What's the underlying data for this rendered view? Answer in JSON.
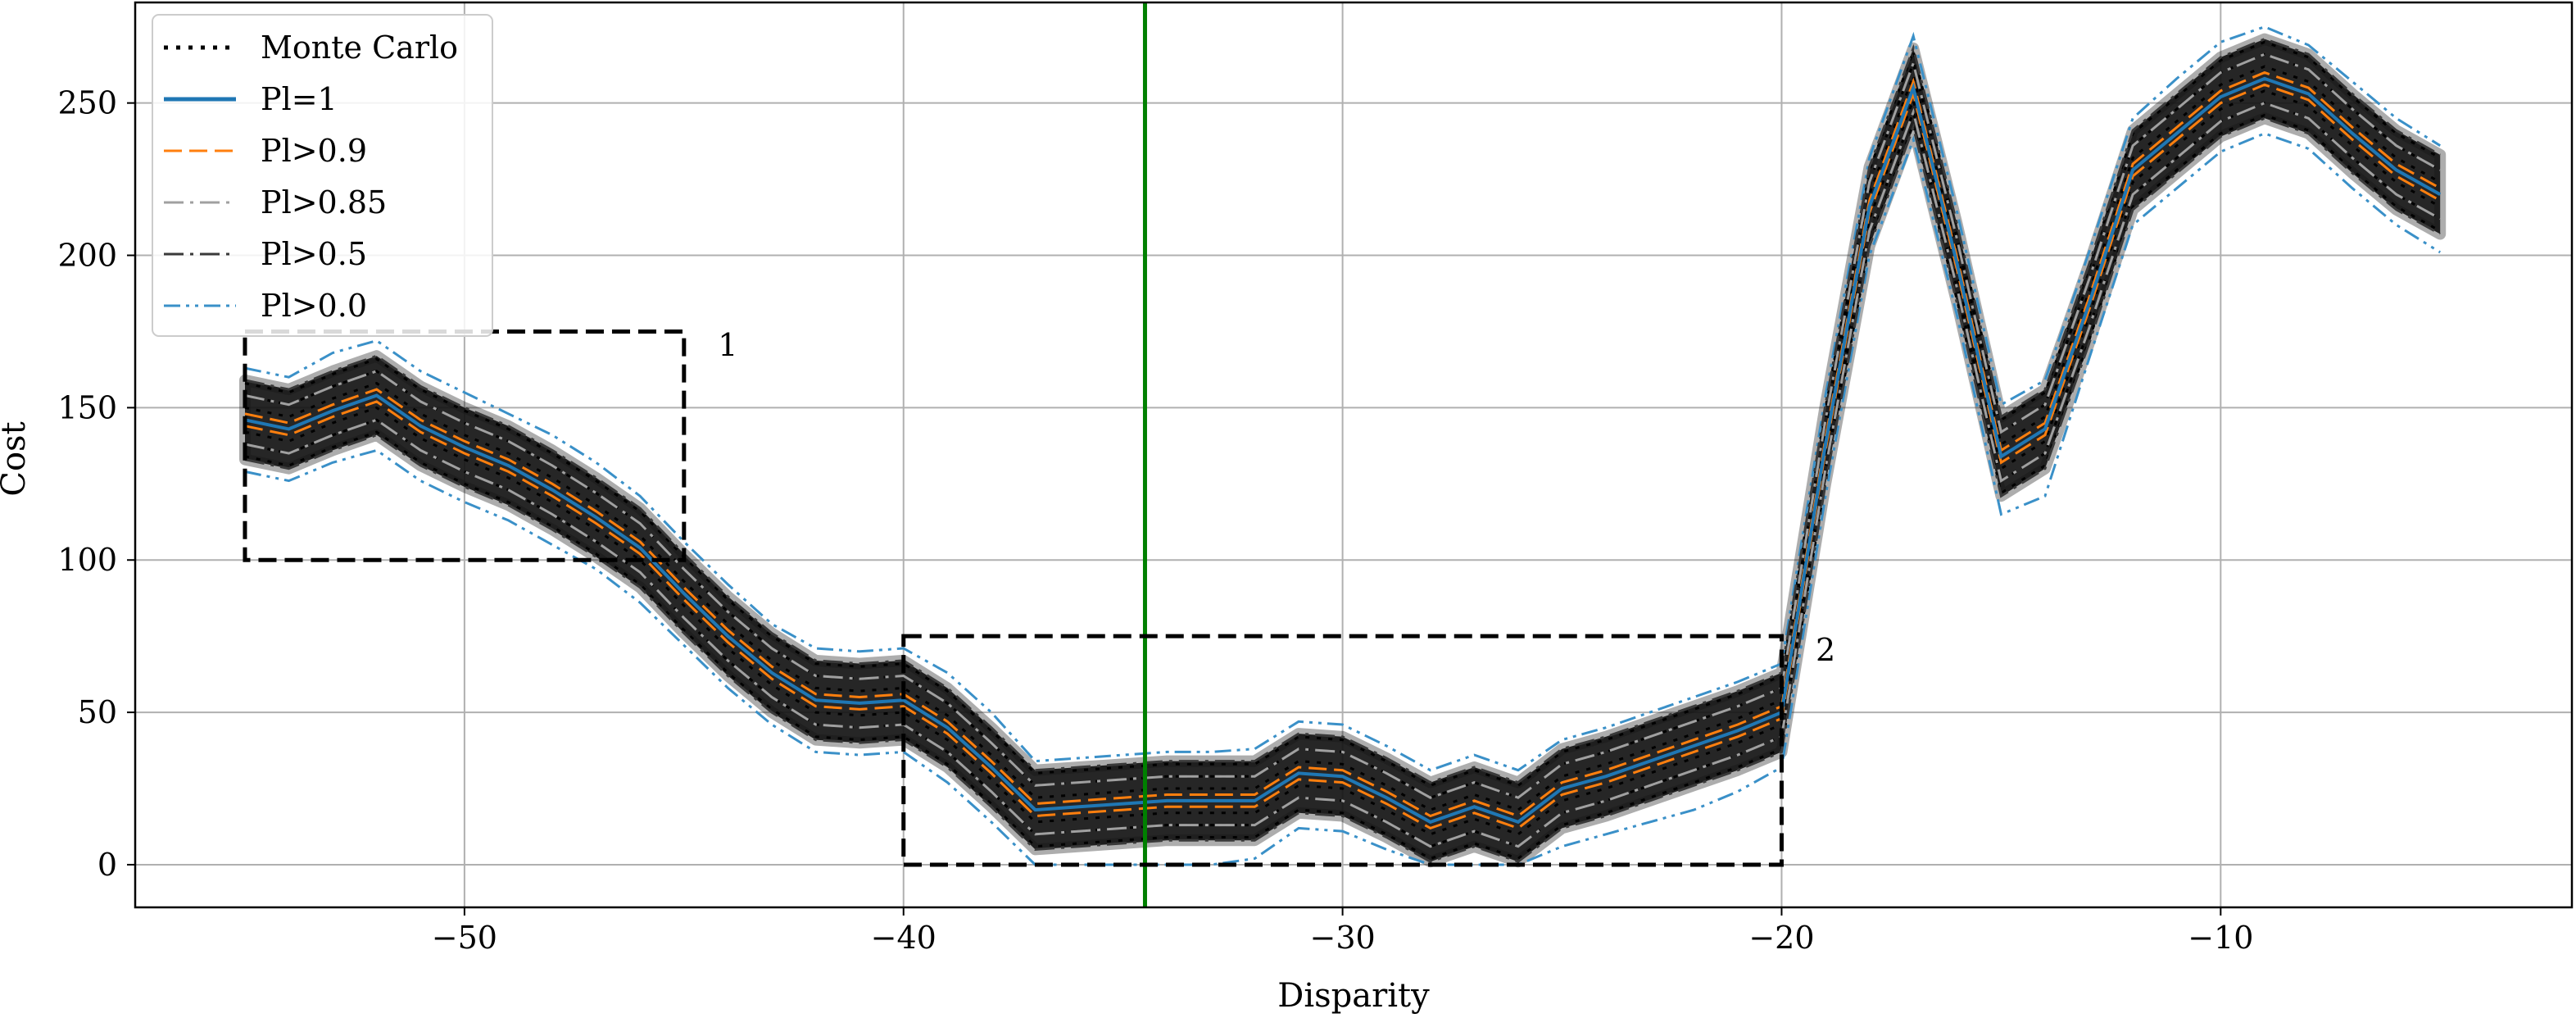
{
  "chart_data": {
    "type": "line",
    "xlabel": "Disparity",
    "ylabel": "Cost",
    "xlim": [
      -57.5,
      -2
    ],
    "ylim": [
      -14,
      283
    ],
    "xticks": [
      -50,
      -40,
      -30,
      -20,
      -10
    ],
    "xtick_labels": [
      "−50",
      "−40",
      "−30",
      "−20",
      "−10"
    ],
    "yticks": [
      0,
      50,
      100,
      150,
      200,
      250
    ],
    "ytick_labels": [
      "0",
      "50",
      "100",
      "150",
      "200",
      "250"
    ],
    "grid": true,
    "legend_position": "upper-left",
    "legend": [
      "Monte Carlo",
      "Pl=1",
      "Pl>0.9",
      "Pl>0.85",
      "Pl>0.5",
      "Pl>0.0"
    ],
    "x": [
      -55,
      -54,
      -53,
      -52,
      -51,
      -50,
      -49,
      -48,
      -47,
      -46,
      -45,
      -44,
      -43,
      -42,
      -41,
      -40,
      -39,
      -38,
      -37,
      -36,
      -35,
      -34,
      -33,
      -32,
      -31,
      -30,
      -29,
      -28,
      -27,
      -26,
      -25,
      -24,
      -23,
      -22,
      -21,
      -20,
      -19,
      -18,
      -17,
      -16,
      -15,
      -14,
      -13,
      -12,
      -11,
      -10,
      -9,
      -8,
      -7,
      -6,
      -5
    ],
    "center": [
      146,
      143,
      149,
      154,
      144,
      137,
      131,
      123,
      114,
      104,
      89,
      75,
      63,
      54,
      53,
      54,
      45,
      32,
      18,
      19,
      20,
      21,
      21,
      21,
      30,
      29,
      22,
      14,
      19,
      14,
      25,
      29,
      34,
      39,
      44,
      50,
      138,
      216,
      255,
      197,
      134,
      143,
      184,
      228,
      240,
      252,
      258,
      253,
      240,
      228,
      220
    ],
    "series": [
      {
        "name": "Pl=1",
        "color": "#1f77b4",
        "style": "solid",
        "offsets": [
          0
        ]
      },
      {
        "name": "Pl>0.9",
        "color": "#ff7f0e",
        "style": "dashed",
        "offsets": [
          -2,
          2
        ]
      },
      {
        "name": "Pl>0.85",
        "color": "#a0a0a0",
        "style": "dashdot",
        "offsets": [
          -8,
          8
        ]
      },
      {
        "name": "Pl>0.5",
        "color": "#3a3a3a",
        "style": "dashdot",
        "offsets": [
          -13,
          13
        ]
      },
      {
        "name": "Pl>0.0",
        "color": "#3a90c8",
        "style": "dashdotdot",
        "upper": [
          163,
          160,
          168,
          172,
          162,
          155,
          148,
          141,
          132,
          121,
          106,
          92,
          79,
          71,
          70,
          71,
          63,
          50,
          34,
          35,
          36,
          37,
          37,
          38,
          47,
          46,
          39,
          31,
          36,
          31,
          41,
          45,
          50,
          55,
          60,
          66,
          154,
          232,
          272,
          214,
          151,
          159,
          201,
          245,
          258,
          270,
          275,
          269,
          257,
          245,
          236
        ],
        "lower": [
          129,
          126,
          132,
          136,
          126,
          119,
          113,
          105,
          97,
          86,
          72,
          58,
          46,
          37,
          36,
          37,
          27,
          14,
          0,
          0,
          0,
          0,
          0,
          2,
          12,
          11,
          5,
          0,
          0,
          0,
          6,
          10,
          14,
          18,
          24,
          32,
          121,
          200,
          238,
          180,
          115,
          121,
          166,
          210,
          222,
          234,
          240,
          235,
          222,
          210,
          201
        ]
      }
    ],
    "vline": {
      "x": -34.5,
      "color": "#008000"
    },
    "annotations": [
      {
        "label": "1",
        "box": {
          "x0": -55,
          "x1": -45,
          "y0": 100,
          "y1": 175
        },
        "label_pos": {
          "x": -44,
          "y": 167
        }
      },
      {
        "label": "2",
        "box": {
          "x0": -40,
          "x1": -20,
          "y0": 0,
          "y1": 75
        },
        "label_pos": {
          "x": -19,
          "y": 67
        }
      }
    ]
  }
}
